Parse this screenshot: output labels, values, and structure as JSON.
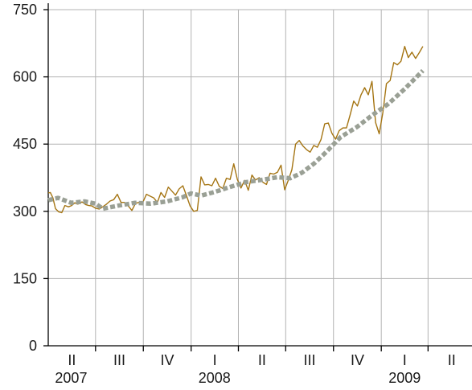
{
  "chart_data": {
    "type": "line",
    "title": "",
    "xlabel": "",
    "ylabel": "",
    "ylim": [
      0,
      750
    ],
    "y_ticks": [
      0,
      150,
      300,
      450,
      600,
      750
    ],
    "grid": true,
    "x_axis": {
      "quarters": [
        {
          "label": "II",
          "date": "2007-04-01"
        },
        {
          "label": "III",
          "date": "2007-07-01"
        },
        {
          "label": "IV",
          "date": "2007-10-01"
        },
        {
          "label": "I",
          "date": "2008-01-01"
        },
        {
          "label": "II",
          "date": "2008-04-01"
        },
        {
          "label": "III",
          "date": "2008-07-01"
        },
        {
          "label": "IV",
          "date": "2008-10-01"
        },
        {
          "label": "I",
          "date": "2009-01-01"
        },
        {
          "label": "II",
          "date": "2009-04-01"
        }
      ],
      "years": [
        {
          "label": "2007",
          "date": "2007-05-15"
        },
        {
          "label": "2008",
          "date": "2008-02-15"
        },
        {
          "label": "2009",
          "date": "2009-02-15"
        }
      ],
      "range": [
        "2007-04-01",
        "2009-06-30"
      ]
    },
    "series": [
      {
        "color": "#a57513",
        "style": "solid",
        "points": [
          [
            "2007-04-01",
            341
          ],
          [
            "2007-04-05",
            342
          ],
          [
            "2007-04-10",
            330
          ],
          [
            "2007-04-15",
            306
          ],
          [
            "2007-04-21",
            299
          ],
          [
            "2007-04-27",
            297
          ],
          [
            "2007-05-03",
            313
          ],
          [
            "2007-05-10",
            310
          ],
          [
            "2007-05-16",
            313
          ],
          [
            "2007-05-22",
            319
          ],
          [
            "2007-05-28",
            316
          ],
          [
            "2007-06-05",
            321
          ],
          [
            "2007-06-12",
            315
          ],
          [
            "2007-06-18",
            313
          ],
          [
            "2007-06-24",
            312
          ],
          [
            "2007-07-01",
            307
          ],
          [
            "2007-07-08",
            305
          ],
          [
            "2007-07-15",
            310
          ],
          [
            "2007-07-22",
            316
          ],
          [
            "2007-07-29",
            323
          ],
          [
            "2007-08-05",
            326
          ],
          [
            "2007-08-12",
            338
          ],
          [
            "2007-08-19",
            320
          ],
          [
            "2007-08-26",
            320
          ],
          [
            "2007-09-02",
            312
          ],
          [
            "2007-09-09",
            302
          ],
          [
            "2007-09-16",
            318
          ],
          [
            "2007-09-23",
            320
          ],
          [
            "2007-09-30",
            320
          ],
          [
            "2007-10-07",
            338
          ],
          [
            "2007-10-14",
            334
          ],
          [
            "2007-10-21",
            330
          ],
          [
            "2007-10-28",
            320
          ],
          [
            "2007-11-04",
            342
          ],
          [
            "2007-11-11",
            331
          ],
          [
            "2007-11-18",
            354
          ],
          [
            "2007-11-25",
            345
          ],
          [
            "2007-12-02",
            336
          ],
          [
            "2007-12-09",
            350
          ],
          [
            "2007-12-16",
            357
          ],
          [
            "2007-12-23",
            335
          ],
          [
            "2007-12-30",
            312
          ],
          [
            "2008-01-06",
            300
          ],
          [
            "2008-01-13",
            302
          ],
          [
            "2008-01-20",
            377
          ],
          [
            "2008-01-27",
            359
          ],
          [
            "2008-02-03",
            360
          ],
          [
            "2008-02-10",
            357
          ],
          [
            "2008-02-17",
            374
          ],
          [
            "2008-02-24",
            356
          ],
          [
            "2008-03-02",
            351
          ],
          [
            "2008-03-09",
            374
          ],
          [
            "2008-03-16",
            371
          ],
          [
            "2008-03-23",
            406
          ],
          [
            "2008-03-30",
            371
          ],
          [
            "2008-04-06",
            352
          ],
          [
            "2008-04-13",
            369
          ],
          [
            "2008-04-20",
            347
          ],
          [
            "2008-04-27",
            381
          ],
          [
            "2008-05-04",
            370
          ],
          [
            "2008-05-11",
            375
          ],
          [
            "2008-05-18",
            365
          ],
          [
            "2008-05-25",
            360
          ],
          [
            "2008-06-01",
            385
          ],
          [
            "2008-06-08",
            383
          ],
          [
            "2008-06-15",
            387
          ],
          [
            "2008-06-22",
            403
          ],
          [
            "2008-06-29",
            348
          ],
          [
            "2008-07-06",
            369
          ],
          [
            "2008-07-13",
            393
          ],
          [
            "2008-07-20",
            450
          ],
          [
            "2008-07-27",
            458
          ],
          [
            "2008-08-03",
            446
          ],
          [
            "2008-08-10",
            438
          ],
          [
            "2008-08-17",
            432
          ],
          [
            "2008-08-24",
            447
          ],
          [
            "2008-08-31",
            443
          ],
          [
            "2008-09-07",
            460
          ],
          [
            "2008-09-14",
            495
          ],
          [
            "2008-09-21",
            497
          ],
          [
            "2008-09-28",
            474
          ],
          [
            "2008-10-05",
            461
          ],
          [
            "2008-10-12",
            480
          ],
          [
            "2008-10-19",
            486
          ],
          [
            "2008-10-26",
            486
          ],
          [
            "2008-11-02",
            515
          ],
          [
            "2008-11-09",
            546
          ],
          [
            "2008-11-16",
            535
          ],
          [
            "2008-11-23",
            560
          ],
          [
            "2008-11-30",
            576
          ],
          [
            "2008-12-07",
            560
          ],
          [
            "2008-12-14",
            590
          ],
          [
            "2008-12-21",
            498
          ],
          [
            "2008-12-28",
            473
          ],
          [
            "2009-01-04",
            520
          ],
          [
            "2009-01-11",
            585
          ],
          [
            "2009-01-18",
            592
          ],
          [
            "2009-01-25",
            632
          ],
          [
            "2009-02-01",
            627
          ],
          [
            "2009-02-08",
            635
          ],
          [
            "2009-02-15",
            668
          ],
          [
            "2009-02-22",
            643
          ],
          [
            "2009-03-01",
            655
          ],
          [
            "2009-03-08",
            641
          ],
          [
            "2009-03-15",
            654
          ],
          [
            "2009-03-22",
            668
          ]
        ]
      },
      {
        "color": "#9aa095",
        "style": "dotted",
        "points": [
          [
            "2007-04-01",
            325
          ],
          [
            "2007-04-20",
            330
          ],
          [
            "2007-05-15",
            319
          ],
          [
            "2007-06-10",
            322
          ],
          [
            "2007-07-01",
            317
          ],
          [
            "2007-07-15",
            306
          ],
          [
            "2007-08-15",
            313
          ],
          [
            "2007-09-15",
            319
          ],
          [
            "2007-10-15",
            317
          ],
          [
            "2007-11-15",
            322
          ],
          [
            "2007-12-15",
            331
          ],
          [
            "2008-01-01",
            340
          ],
          [
            "2008-01-20",
            335
          ],
          [
            "2008-02-15",
            343
          ],
          [
            "2008-03-15",
            354
          ],
          [
            "2008-04-15",
            365
          ],
          [
            "2008-05-15",
            370
          ],
          [
            "2008-06-15",
            376
          ],
          [
            "2008-07-10",
            374
          ],
          [
            "2008-08-01",
            386
          ],
          [
            "2008-08-25",
            407
          ],
          [
            "2008-09-15",
            430
          ],
          [
            "2008-10-15",
            466
          ],
          [
            "2008-11-15",
            488
          ],
          [
            "2008-12-15",
            515
          ],
          [
            "2009-01-15",
            540
          ],
          [
            "2009-02-15",
            573
          ],
          [
            "2009-03-22",
            614
          ]
        ]
      }
    ]
  }
}
